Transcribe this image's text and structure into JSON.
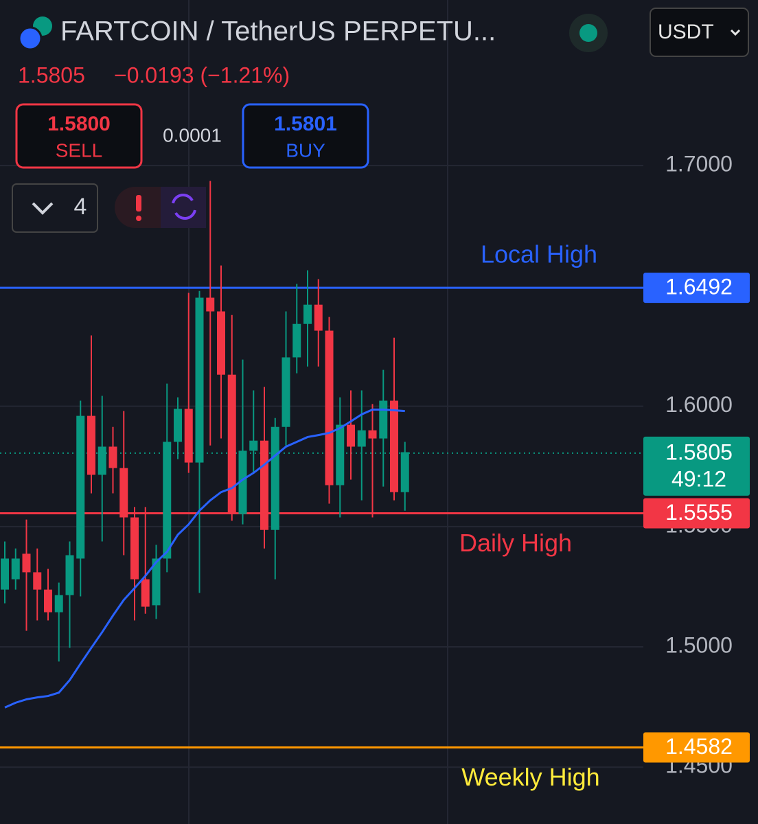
{
  "header": {
    "symbol": "FARTCOIN / TetherUS PERPETU...",
    "last": "1.5805",
    "change": "−0.0193 (−1.21%)",
    "sell_price": "1.5800",
    "sell_label": "SELL",
    "spread": "0.0001",
    "buy_price": "1.5801",
    "buy_label": "BUY",
    "currency": "USDT",
    "indicator_count": "4"
  },
  "chart_data": {
    "type": "candlestick",
    "categories": [
      null,
      null,
      null,
      null,
      null,
      null,
      null,
      null,
      null,
      null,
      null,
      null,
      null,
      null,
      null,
      null,
      null,
      null,
      null,
      null,
      null,
      null,
      null,
      null,
      null,
      null,
      null,
      null,
      null,
      null,
      null,
      null,
      null,
      null,
      null,
      null,
      null,
      null
    ],
    "open": [
      1.5238,
      1.5281,
      1.5387,
      1.531,
      1.5238,
      1.5144,
      1.5215,
      1.5367,
      1.596,
      1.5715,
      1.5832,
      1.5743,
      1.5538,
      1.5281,
      1.5173,
      1.5367,
      1.5852,
      1.5989,
      1.5766,
      1.6451,
      1.6394,
      1.6131,
      1.5552,
      1.5815,
      1.5857,
      1.5486,
      1.5914,
      1.6203,
      1.6342,
      1.6422,
      1.6314,
      1.5672,
      1.5923,
      1.5832,
      1.59,
      1.5866,
      1.6023,
      1.5643
    ],
    "high": [
      1.5438,
      1.5409,
      1.5529,
      1.5409,
      1.5324,
      1.5267,
      1.5438,
      1.6023,
      1.6294,
      1.6043,
      1.5914,
      1.598,
      1.5581,
      1.5581,
      1.5424,
      1.6094,
      1.6037,
      1.6471,
      1.6479,
      1.6936,
      1.6585,
      1.6379,
      1.6194,
      1.6066,
      1.608,
      1.5951,
      1.6394,
      1.6508,
      1.6565,
      1.6528,
      1.6371,
      1.6037,
      1.6066,
      1.6066,
      1.6009,
      1.6151,
      1.6285,
      1.5852
    ],
    "low": [
      1.5181,
      1.5238,
      1.5067,
      1.511,
      1.511,
      1.4939,
      1.4996,
      1.521,
      1.5638,
      1.5438,
      1.5638,
      1.5381,
      1.511,
      1.5138,
      1.5116,
      1.531,
      1.578,
      1.5723,
      1.5224,
      1.5837,
      1.5866,
      1.5524,
      1.5509,
      1.5723,
      1.5409,
      1.5281,
      1.5837,
      1.6137,
      1.6165,
      1.6165,
      1.5595,
      1.5538,
      1.5695,
      1.5609,
      1.5538,
      1.5666,
      1.5609,
      1.5566
    ],
    "close": [
      1.5367,
      1.5367,
      1.531,
      1.5238,
      1.5144,
      1.5215,
      1.5381,
      1.596,
      1.5715,
      1.5832,
      1.5743,
      1.5538,
      1.5281,
      1.5167,
      1.5367,
      1.5852,
      1.5989,
      1.5766,
      1.6451,
      1.6394,
      1.6131,
      1.5552,
      1.5815,
      1.5857,
      1.5486,
      1.5914,
      1.6203,
      1.6342,
      1.6422,
      1.6314,
      1.5672,
      1.5923,
      1.5832,
      1.59,
      1.5866,
      1.6023,
      1.5643,
      1.5809
    ],
    "up_color": "#089981",
    "down_color": "#f23645",
    "ma": {
      "color": "#2962ff",
      "values": [
        1.4748,
        1.4768,
        1.4782,
        1.479,
        1.4796,
        1.481,
        1.4862,
        1.493,
        1.4996,
        1.5061,
        1.513,
        1.5195,
        1.5244,
        1.5295,
        1.5352,
        1.5395,
        1.5466,
        1.5509,
        1.5566,
        1.5609,
        1.5643,
        1.566,
        1.5695,
        1.5723,
        1.5757,
        1.5795,
        1.5832,
        1.5852,
        1.5872,
        1.588,
        1.5889,
        1.5909,
        1.5937,
        1.5966,
        1.5986,
        1.5986,
        1.5983,
        1.598
      ]
    },
    "ylim": [
      1.4264,
      1.7688
    ],
    "yticks": [
      {
        "value": 1.7,
        "label": "1.7000"
      },
      {
        "value": 1.6,
        "label": "1.6000"
      },
      {
        "value": 1.55,
        "label": "1.5500"
      },
      {
        "value": 1.5,
        "label": "1.5000"
      },
      {
        "value": 1.45,
        "label": "1.4500"
      }
    ],
    "grid": true,
    "levels": [
      {
        "name": "Local High",
        "value": 1.6492,
        "color": "#2962ff",
        "text_color": "#2962ff"
      },
      {
        "name": "Daily High",
        "value": 1.5555,
        "color": "#f23645",
        "text_color": "#f23645"
      },
      {
        "name": "Weekly High",
        "value": 1.4582,
        "color": "#ff9800",
        "text_color": "#ffeb3b"
      }
    ],
    "last_price": {
      "value": 1.5805,
      "countdown": "49:12",
      "color": "#089981"
    }
  }
}
